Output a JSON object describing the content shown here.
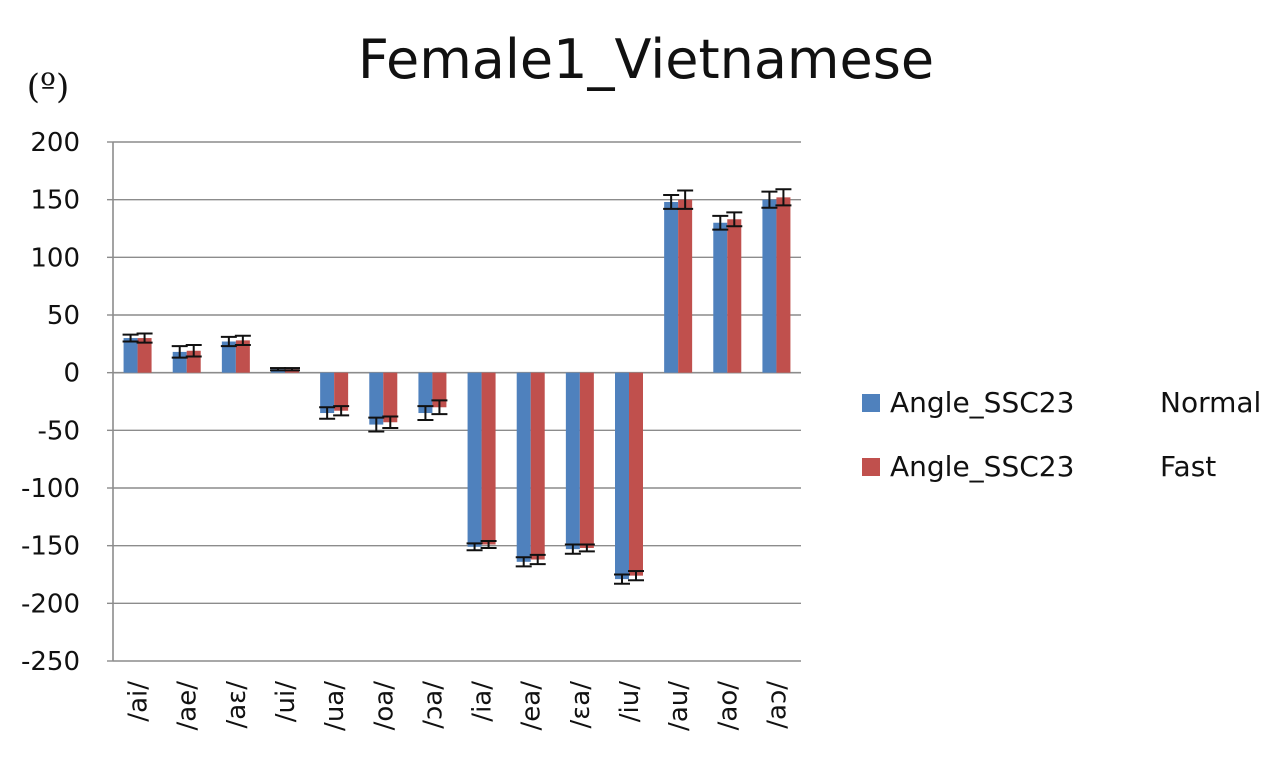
{
  "chart_data": {
    "type": "bar",
    "title": "Female1_Vietnamese",
    "unit_label": "(º)",
    "xlabel": "",
    "ylabel": "",
    "ylim": [
      -250,
      200
    ],
    "yticks": [
      200,
      150,
      100,
      50,
      0,
      -50,
      -100,
      -150,
      -200,
      -250
    ],
    "grid": true,
    "legend_position": "right",
    "categories": [
      "/ai/",
      "/ae/",
      "/aɛ/",
      "/ui/",
      "/ua/",
      "/oa/",
      "/ɔa/",
      "/ia/",
      "/ea/",
      "/ɛa/",
      "/iu/",
      "/au/",
      "/ao/",
      "/aɔ/"
    ],
    "series": [
      {
        "legend_label": "Angle_SSC23",
        "legend_suffix": "Normal",
        "color": "#4f81bd",
        "values": [
          30,
          18,
          27,
          3,
          -35,
          -45,
          -35,
          -151,
          -164,
          -153,
          -179,
          148,
          130,
          150
        ],
        "errors": [
          3,
          5,
          4,
          1,
          5,
          6,
          6,
          3,
          4,
          4,
          4,
          6,
          6,
          7
        ]
      },
      {
        "legend_label": "Angle_SSC23",
        "legend_suffix": "Fast",
        "color": "#c0504d",
        "values": [
          30,
          19,
          28,
          3,
          -33,
          -43,
          -30,
          -149,
          -162,
          -152,
          -176,
          150,
          133,
          152
        ],
        "errors": [
          4,
          5,
          4,
          1,
          4,
          5,
          6,
          3,
          4,
          3,
          4,
          8,
          6,
          7
        ]
      }
    ]
  }
}
